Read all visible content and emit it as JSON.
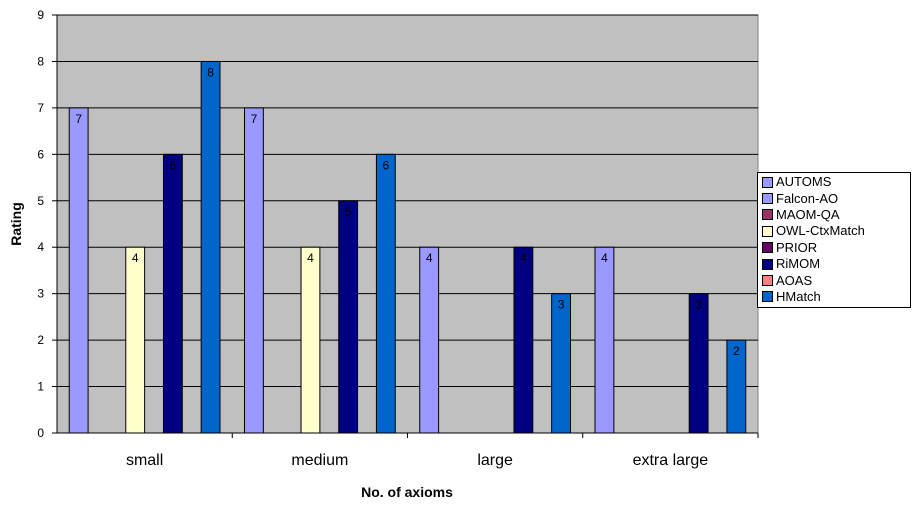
{
  "chart_data": {
    "type": "bar",
    "title": "",
    "xlabel": "No. of axioms",
    "ylabel": "Rating",
    "categories": [
      "small",
      "medium",
      "large",
      "extra large"
    ],
    "ylim": [
      0,
      9
    ],
    "yticks": [
      "0",
      "1",
      "2",
      "3",
      "4",
      "5",
      "6",
      "7",
      "8",
      "9"
    ],
    "grid": true,
    "legend_position": "right",
    "series": [
      {
        "name": "AUTOMS",
        "color": "#9999ff",
        "values": [
          7,
          7,
          4,
          4
        ]
      },
      {
        "name": "Falcon-AO",
        "color": "#9999ff",
        "values": [
          0,
          0,
          0,
          0
        ]
      },
      {
        "name": "MAOM-QA",
        "color": "#993366",
        "values": [
          0,
          0,
          0,
          0
        ]
      },
      {
        "name": "OWL-CtxMatch",
        "color": "#ffffcc",
        "values": [
          4,
          4,
          0,
          0
        ]
      },
      {
        "name": "PRIOR",
        "color": "#660066",
        "values": [
          0,
          0,
          0,
          0
        ]
      },
      {
        "name": "RiMOM",
        "color": "#000080",
        "values": [
          6,
          5,
          4,
          3
        ]
      },
      {
        "name": "AOAS",
        "color": "#ff8080",
        "values": [
          0,
          0,
          0,
          0
        ]
      },
      {
        "name": "HMatch",
        "color": "#0066cc",
        "values": [
          8,
          6,
          3,
          2
        ]
      }
    ],
    "plot_background": "#c0c0c0"
  }
}
